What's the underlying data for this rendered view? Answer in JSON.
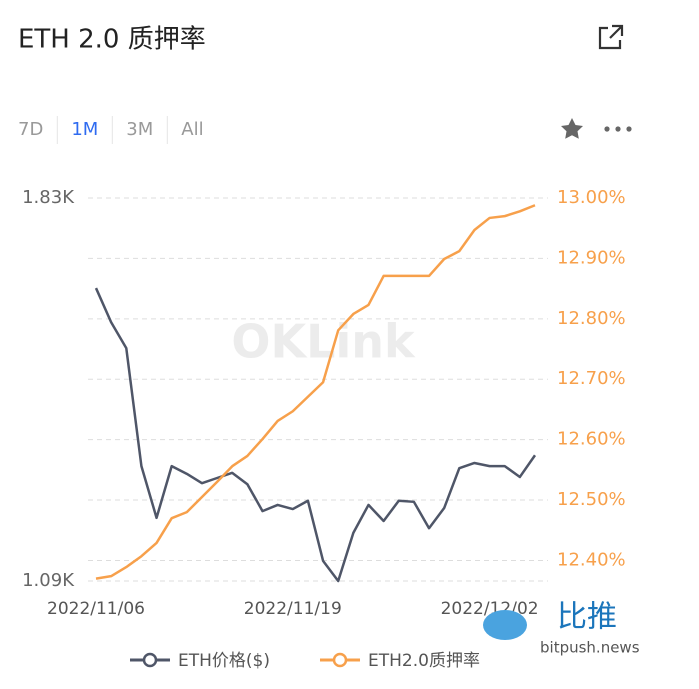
{
  "header": {
    "title": "ETH 2.0 质押率"
  },
  "tabs": [
    "7D",
    "1M",
    "3M",
    "All"
  ],
  "active_tab": 1,
  "watermark": "OKLink",
  "brand": {
    "name": "比推",
    "site": "bitpush.news"
  },
  "chart_data": {
    "type": "line",
    "categories": [
      "2022/11/06",
      null,
      null,
      null,
      null,
      null,
      null,
      null,
      null,
      null,
      null,
      null,
      null,
      "2022/11/19",
      null,
      null,
      null,
      null,
      null,
      null,
      null,
      null,
      null,
      null,
      null,
      null,
      "2022/12/02",
      null,
      null,
      null
    ],
    "series": [
      {
        "name": "ETH价格($)",
        "color": "#4f5668",
        "axis": "y",
        "values": [
          1656,
          1590,
          1540,
          1312,
          1212,
          1312,
          1297,
          1279,
          1289,
          1299,
          1277,
          1225,
          1237,
          1229,
          1245,
          1129,
          1090,
          1183,
          1237,
          1206,
          1245,
          1243,
          1192,
          1231,
          1308,
          1318,
          1312,
          1312,
          1291,
          1333
        ]
      },
      {
        "name": "ETH2.0质押率",
        "color": "#f7a04b",
        "axis": "y2",
        "values": [
          12.37,
          12.374,
          12.389,
          12.407,
          12.429,
          12.47,
          12.48,
          12.505,
          12.53,
          12.556,
          12.573,
          12.601,
          12.631,
          12.647,
          12.671,
          12.695,
          12.781,
          12.808,
          12.823,
          12.871,
          12.871,
          12.871,
          12.871,
          12.899,
          12.912,
          12.947,
          12.967,
          12.97,
          12.978,
          12.988
        ]
      }
    ],
    "ylim": [
      1090,
      1830
    ],
    "yticks": [
      {
        "value": 1830,
        "label": "1.83K"
      },
      {
        "value": 1090,
        "label": "1.09K"
      }
    ],
    "y2lim": [
      12.366,
      13.0
    ],
    "y2ticks": [
      {
        "value": 13.0,
        "label": "13.00%"
      },
      {
        "value": 12.9,
        "label": "12.90%"
      },
      {
        "value": 12.8,
        "label": "12.80%"
      },
      {
        "value": 12.7,
        "label": "12.70%"
      },
      {
        "value": 12.6,
        "label": "12.60%"
      },
      {
        "value": 12.5,
        "label": "12.50%"
      },
      {
        "value": 12.4,
        "label": "12.40%"
      }
    ],
    "grid": true
  }
}
